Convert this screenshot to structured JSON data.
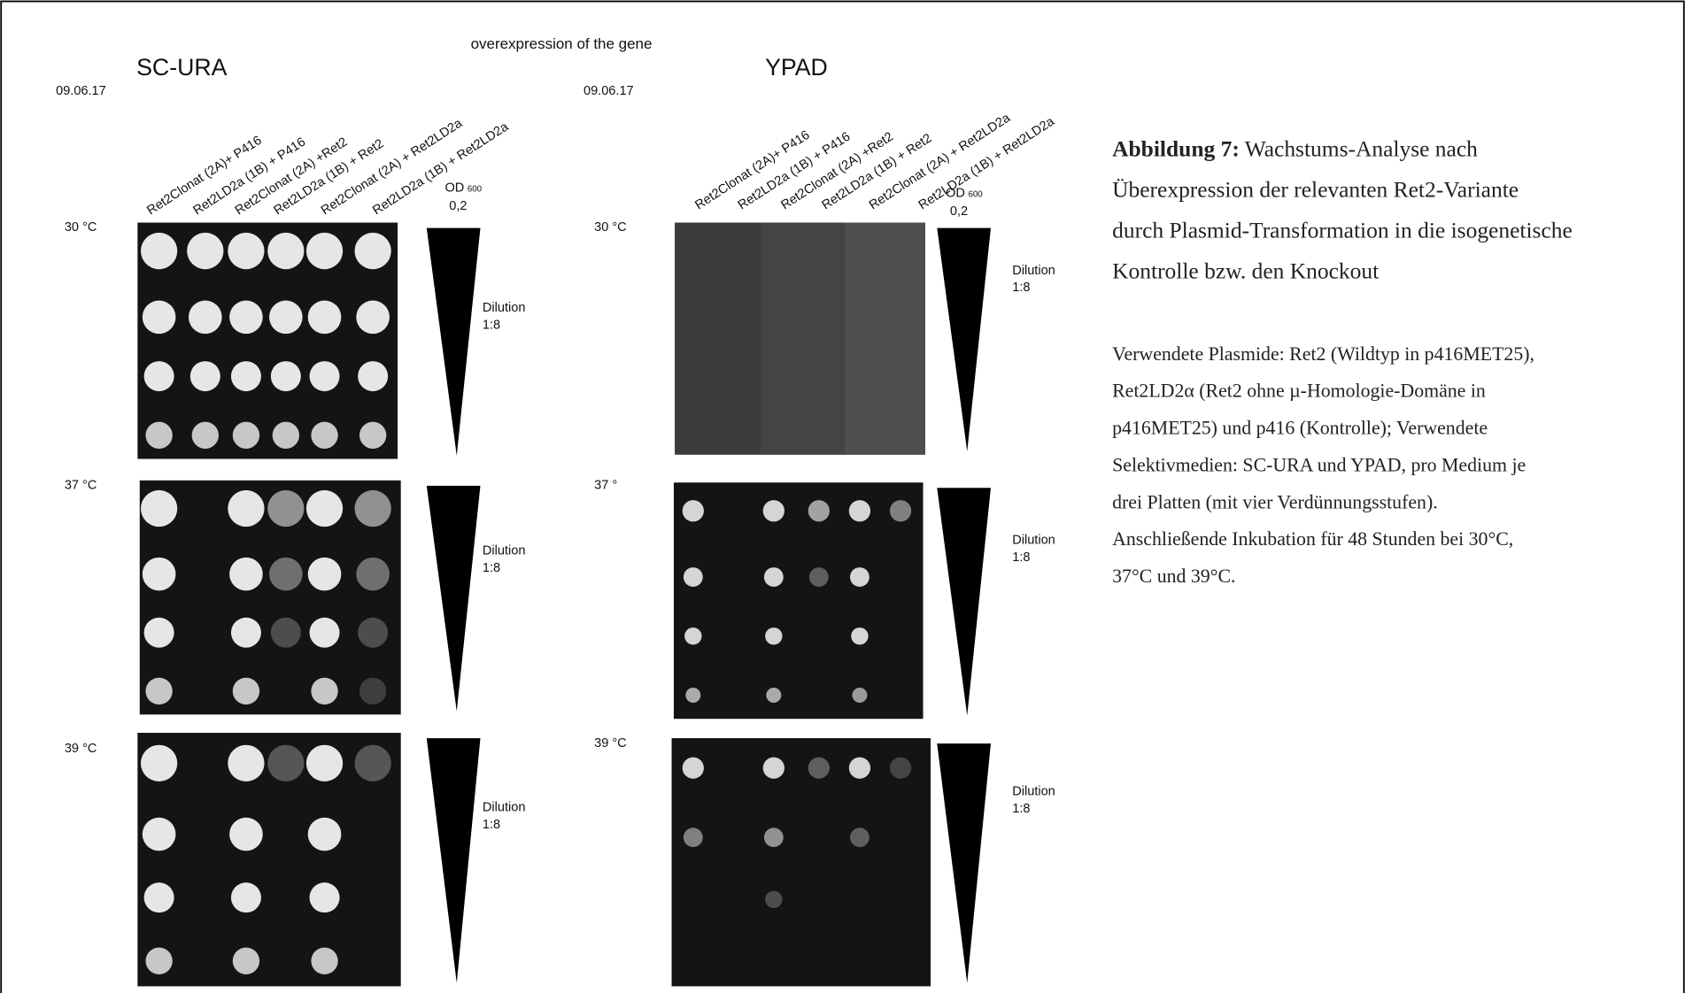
{
  "header": "overexpression of the gene",
  "panels": [
    {
      "title": "SC-URA",
      "date": "09.06.17",
      "columns": [
        "Ret2Clonat (2A)+ P416",
        "Ret2LD2a (1B) + P416",
        "Ret2Clonat (2A) +Ret2",
        "Ret2LD2a (1B) + Ret2",
        "Ret2Clonat (2A) + Ret2LD2a",
        "Ret2LD2a (1B) + Ret2LD2a"
      ],
      "od": "OD",
      "od_sub": "600",
      "od_value": "0,2",
      "rows": [
        {
          "temp": "30 °C",
          "dilution": "Dilution",
          "ratio": "1:8"
        },
        {
          "temp": "37 °C",
          "dilution": "Dilution",
          "ratio": "1:8"
        },
        {
          "temp": "39 °C",
          "dilution": "Dilution",
          "ratio": "1:8"
        }
      ]
    },
    {
      "title": "YPAD",
      "date": "09.06.17",
      "columns": [
        "Ret2Clonat (2A)+ P416",
        "Ret2LD2a (1B) + P416",
        "Ret2Clonat (2A) +Ret2",
        "Ret2LD2a (1B) + Ret2",
        "Ret2Clonat (2A) + Ret2LD2a",
        "Ret2LD2a (1B) + Ret2LD2a"
      ],
      "od": "OD",
      "od_sub": "600",
      "od_value": "0,2",
      "rows": [
        {
          "temp": "30 °C",
          "dilution": "Dilution",
          "ratio": "1:8"
        },
        {
          "temp": "37 °",
          "dilution": "Dilution",
          "ratio": "1:8"
        },
        {
          "temp": "39 °C",
          "dilution": "Dilution",
          "ratio": "1:8"
        }
      ]
    }
  ],
  "caption": {
    "label": "Abbildung 7:",
    "lines": [
      " Wachstums-Analyse nach",
      "Überexpression der relevanten Ret2-Variante",
      "durch Plasmid-Transformation in die isogenetische",
      "Kontrolle bzw. den Knockout"
    ],
    "details": [
      "Verwendete Plasmide: Ret2 (Wildtyp in p416MET25),",
      "Ret2LD2α (Ret2 ohne µ-Homologie-Domäne in",
      "p416MET25) und p416 (Kontrolle); Verwendete",
      "Selektivmedien: SC-URA und YPAD, pro Medium je",
      "drei Platten (mit vier Verdünnungsstufen).",
      "Anschließende Inkubation für 48 Stunden bei 30°C,",
      "37°C und 39°C."
    ]
  }
}
